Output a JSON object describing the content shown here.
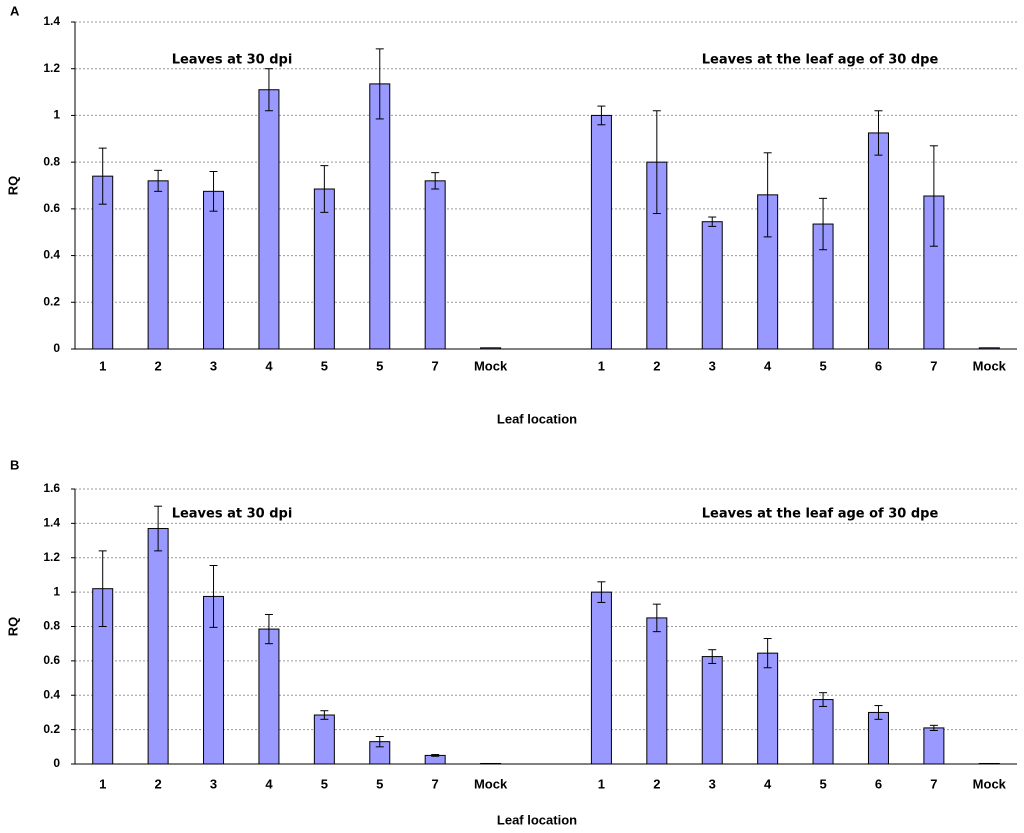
{
  "chart_data": [
    {
      "type": "bar",
      "panel_label": "A",
      "y_label": "RQ",
      "x_label": "Leaf location",
      "annotations": [
        "Leaves at 30 dpi",
        "Leaves at the leaf age of 30 dpe"
      ],
      "categories": [
        "1",
        "2",
        "3",
        "4",
        "5",
        "5",
        "7",
        "Mock",
        null,
        "1",
        "2",
        "3",
        "4",
        "5",
        "6",
        "7",
        "Mock"
      ],
      "values": [
        0.74,
        0.72,
        0.675,
        1.11,
        0.685,
        1.135,
        0.72,
        0.005,
        null,
        1.0,
        0.8,
        0.545,
        0.66,
        0.535,
        0.925,
        0.655,
        0.005
      ],
      "errors": [
        0.12,
        0.045,
        0.085,
        0.09,
        0.1,
        0.15,
        0.035,
        0,
        null,
        0.04,
        0.22,
        0.02,
        0.18,
        0.11,
        0.095,
        0.215,
        0
      ],
      "color": "#9999ff",
      "ylim": [
        0,
        1.4
      ],
      "yticks": [
        0,
        0.2,
        0.4,
        0.6,
        0.8,
        1,
        1.2,
        1.4
      ],
      "grid": true
    },
    {
      "type": "bar",
      "panel_label": "B",
      "y_label": "RQ",
      "x_label": "Leaf location",
      "annotations": [
        "Leaves at 30 dpi",
        "Leaves at the leaf age of 30 dpe"
      ],
      "categories": [
        "1",
        "2",
        "3",
        "4",
        "5",
        "5",
        "7",
        "Mock",
        null,
        "1",
        "2",
        "3",
        "4",
        "5",
        "6",
        "7",
        "Mock"
      ],
      "values": [
        1.02,
        1.37,
        0.975,
        0.785,
        0.285,
        0.13,
        0.05,
        0.003,
        null,
        1.0,
        0.85,
        0.625,
        0.645,
        0.375,
        0.3,
        0.21,
        0.003
      ],
      "errors": [
        0.22,
        0.13,
        0.18,
        0.085,
        0.025,
        0.03,
        0.005,
        0,
        null,
        0.06,
        0.08,
        0.04,
        0.085,
        0.04,
        0.04,
        0.015,
        0
      ],
      "color": "#9999ff",
      "ylim": [
        0,
        1.6
      ],
      "yticks": [
        0,
        0.2,
        0.4,
        0.6,
        0.8,
        1,
        1.2,
        1.4,
        1.6
      ],
      "grid": true
    }
  ]
}
